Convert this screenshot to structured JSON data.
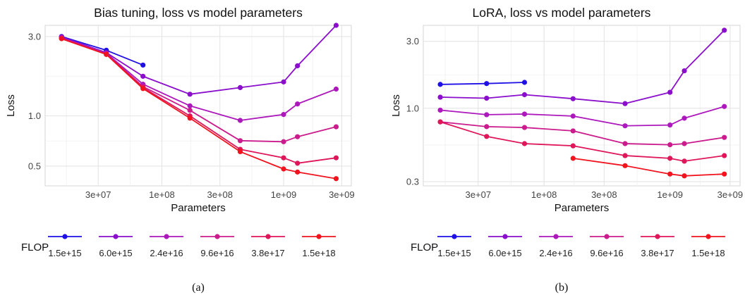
{
  "chart_data": [
    {
      "type": "line",
      "title": "Bias tuning, loss vs model parameters",
      "xlabel": "Parameters",
      "ylabel": "Loss",
      "xscale": "log",
      "yscale": "log",
      "xlim": [
        11000000,
        3600000000
      ],
      "ylim": [
        0.38,
        3.5
      ],
      "xticks": [
        {
          "v": 30000000,
          "label": "3e+07"
        },
        {
          "v": 100000000,
          "label": "1e+08"
        },
        {
          "v": 300000000,
          "label": "3e+08"
        },
        {
          "v": 1000000000,
          "label": "1e+09"
        },
        {
          "v": 3000000000,
          "label": "3e+09"
        }
      ],
      "yticks": [
        {
          "v": 0.5,
          "label": "0.5"
        },
        {
          "v": 1.0,
          "label": "1.0"
        },
        {
          "v": 3.0,
          "label": "3.0"
        }
      ],
      "grid": true,
      "legend": {
        "title": "FLOP",
        "placement": "bottom"
      },
      "caption": "(a)",
      "series": [
        {
          "name": "1.5e+15",
          "color": "#1f10e6",
          "x": [
            15000000,
            35000000,
            70000000
          ],
          "y": [
            3.0,
            2.48,
            2.02
          ]
        },
        {
          "name": "6.0e+15",
          "color": "#8a0ecc",
          "x": [
            15000000,
            35000000,
            70000000,
            170000000,
            440000000,
            1000000000,
            1300000000,
            2700000000
          ],
          "y": [
            2.98,
            2.4,
            1.73,
            1.35,
            1.48,
            1.6,
            2.0,
            3.5
          ]
        },
        {
          "name": "2.4e+16",
          "color": "#ad18bc",
          "x": [
            15000000,
            35000000,
            70000000,
            170000000,
            440000000,
            1000000000,
            1300000000,
            2700000000
          ],
          "y": [
            2.95,
            2.38,
            1.55,
            1.15,
            0.94,
            1.02,
            1.18,
            1.45
          ]
        },
        {
          "name": "9.6e+16",
          "color": "#cb1b8c",
          "x": [
            15000000,
            35000000,
            70000000,
            170000000,
            440000000,
            1000000000,
            1300000000,
            2700000000
          ],
          "y": [
            2.93,
            2.36,
            1.5,
            1.08,
            0.71,
            0.7,
            0.75,
            0.86
          ]
        },
        {
          "name": "3.8e+17",
          "color": "#df1659",
          "x": [
            15000000,
            35000000,
            70000000,
            170000000,
            440000000,
            1000000000,
            1300000000,
            2700000000
          ],
          "y": [
            2.92,
            2.35,
            1.48,
            1.0,
            0.63,
            0.56,
            0.52,
            0.56
          ]
        },
        {
          "name": "1.5e+18",
          "color": "#f1141f",
          "x": [
            15000000,
            35000000,
            70000000,
            170000000,
            440000000,
            1000000000,
            1300000000,
            2700000000
          ],
          "y": [
            2.91,
            2.34,
            1.46,
            0.97,
            0.61,
            0.48,
            0.46,
            0.42
          ]
        }
      ]
    },
    {
      "type": "line",
      "title": "LoRA, loss vs model parameters",
      "xlabel": "Parameters",
      "ylabel": "Loss",
      "xscale": "log",
      "yscale": "log",
      "xlim": [
        11000000,
        3600000000
      ],
      "ylim": [
        0.28,
        3.9
      ],
      "xticks": [
        {
          "v": 30000000,
          "label": "3e+07"
        },
        {
          "v": 100000000,
          "label": "1e+08"
        },
        {
          "v": 300000000,
          "label": "3e+08"
        },
        {
          "v": 1000000000,
          "label": "1e+09"
        },
        {
          "v": 3000000000,
          "label": "3e+09"
        }
      ],
      "yticks": [
        {
          "v": 0.3,
          "label": "0.3"
        },
        {
          "v": 1.0,
          "label": "1.0"
        },
        {
          "v": 3.0,
          "label": "3.0"
        }
      ],
      "grid": true,
      "legend": {
        "title": "FLOP",
        "placement": "bottom"
      },
      "caption": "(b)",
      "series": [
        {
          "name": "1.5e+15",
          "color": "#1f10e6",
          "x": [
            15000000,
            35000000,
            70000000
          ],
          "y": [
            1.48,
            1.5,
            1.53
          ]
        },
        {
          "name": "6.0e+15",
          "color": "#8a0ecc",
          "x": [
            15000000,
            35000000,
            70000000,
            170000000,
            440000000,
            1000000000,
            1300000000,
            2700000000
          ],
          "y": [
            1.2,
            1.18,
            1.25,
            1.17,
            1.08,
            1.3,
            1.85,
            3.6
          ]
        },
        {
          "name": "2.4e+16",
          "color": "#ad18bc",
          "x": [
            15000000,
            35000000,
            70000000,
            170000000,
            440000000,
            1000000000,
            1300000000,
            2700000000
          ],
          "y": [
            0.97,
            0.9,
            0.91,
            0.88,
            0.75,
            0.76,
            0.85,
            1.03
          ]
        },
        {
          "name": "9.6e+16",
          "color": "#cb1b8c",
          "x": [
            15000000,
            35000000,
            70000000,
            170000000,
            440000000,
            1000000000,
            1300000000,
            2700000000
          ],
          "y": [
            0.8,
            0.74,
            0.73,
            0.69,
            0.56,
            0.55,
            0.56,
            0.62
          ]
        },
        {
          "name": "3.8e+17",
          "color": "#df1659",
          "x": [
            15000000,
            35000000,
            70000000,
            170000000,
            440000000,
            1000000000,
            1300000000,
            2700000000
          ],
          "y": [
            0.8,
            0.63,
            0.56,
            0.54,
            0.46,
            0.44,
            0.42,
            0.46
          ]
        },
        {
          "name": "1.5e+18",
          "color": "#f1141f",
          "x": [
            170000000,
            440000000,
            1000000000,
            1300000000,
            2700000000
          ],
          "y": [
            0.44,
            0.39,
            0.34,
            0.33,
            0.34
          ]
        }
      ]
    }
  ]
}
